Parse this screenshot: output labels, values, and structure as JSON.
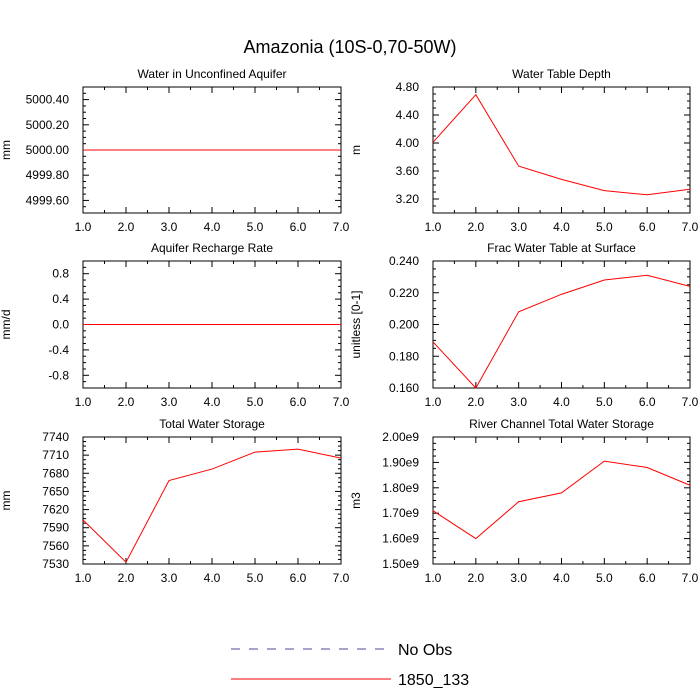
{
  "title": "Amazonia (10S-0,70-50W)",
  "colors": {
    "model_line": "#ff0000",
    "obs_line": "#4a4a9a",
    "axis": "#000000"
  },
  "legend": {
    "placement": "bottom-center",
    "entries": [
      {
        "label": "No Obs",
        "style": "dashed",
        "color": "#4a4a9a"
      },
      {
        "label": "1850_133",
        "style": "solid",
        "color": "#ff0000"
      }
    ]
  },
  "chart_data": [
    {
      "type": "line",
      "title": "Water in Unconfined Aquifer",
      "ylabel": "mm",
      "xlim": [
        1,
        7
      ],
      "ylim": [
        4999.5,
        5000.5
      ],
      "xticks": [
        "1.0",
        "2.0",
        "3.0",
        "4.0",
        "5.0",
        "6.0",
        "7.0"
      ],
      "yticks": [
        {
          "v": 4999.6,
          "label": "4999.60"
        },
        {
          "v": 4999.8,
          "label": "4999.80"
        },
        {
          "v": 5000.0,
          "label": "5000.00"
        },
        {
          "v": 5000.2,
          "label": "5000.20"
        },
        {
          "v": 5000.4,
          "label": "5000.40"
        }
      ],
      "x": [
        1,
        2,
        3,
        4,
        5,
        6,
        7
      ],
      "series": [
        {
          "name": "1850_133",
          "values": [
            5000,
            5000,
            5000,
            5000,
            5000,
            5000,
            5000
          ]
        }
      ]
    },
    {
      "type": "line",
      "title": "Water Table Depth",
      "ylabel": "m",
      "xlim": [
        1,
        7
      ],
      "ylim": [
        3.0,
        4.8
      ],
      "xticks": [
        "1.0",
        "2.0",
        "3.0",
        "4.0",
        "5.0",
        "6.0",
        "7.0"
      ],
      "yticks": [
        {
          "v": 3.2,
          "label": "3.20"
        },
        {
          "v": 3.6,
          "label": "3.60"
        },
        {
          "v": 4.0,
          "label": "4.00"
        },
        {
          "v": 4.4,
          "label": "4.40"
        },
        {
          "v": 4.8,
          "label": "4.80"
        }
      ],
      "x": [
        1,
        2,
        3,
        4,
        5,
        6,
        7
      ],
      "series": [
        {
          "name": "1850_133",
          "values": [
            4.01,
            4.69,
            3.67,
            3.48,
            3.32,
            3.26,
            3.34
          ]
        }
      ]
    },
    {
      "type": "line",
      "title": "Aquifer Recharge Rate",
      "ylabel": "mm/d",
      "xlim": [
        1,
        7
      ],
      "ylim": [
        -1.0,
        1.0
      ],
      "xticks": [
        "1.0",
        "2.0",
        "3.0",
        "4.0",
        "5.0",
        "6.0",
        "7.0"
      ],
      "yticks": [
        {
          "v": -0.8,
          "label": "-0.8"
        },
        {
          "v": -0.4,
          "label": "-0.4"
        },
        {
          "v": 0.0,
          "label": "0.0"
        },
        {
          "v": 0.4,
          "label": "0.4"
        },
        {
          "v": 0.8,
          "label": "0.8"
        }
      ],
      "x": [
        1,
        2,
        3,
        4,
        5,
        6,
        7
      ],
      "series": [
        {
          "name": "1850_133",
          "values": [
            0,
            0,
            0,
            0,
            0,
            0,
            0
          ]
        }
      ]
    },
    {
      "type": "line",
      "title": "Frac Water Table at Surface",
      "ylabel": "unitless [0-1]",
      "xlim": [
        1,
        7
      ],
      "ylim": [
        0.16,
        0.24
      ],
      "xticks": [
        "1.0",
        "2.0",
        "3.0",
        "4.0",
        "5.0",
        "6.0",
        "7.0"
      ],
      "yticks": [
        {
          "v": 0.16,
          "label": "0.160"
        },
        {
          "v": 0.18,
          "label": "0.180"
        },
        {
          "v": 0.2,
          "label": "0.200"
        },
        {
          "v": 0.22,
          "label": "0.220"
        },
        {
          "v": 0.24,
          "label": "0.240"
        }
      ],
      "x": [
        1,
        2,
        3,
        4,
        5,
        6,
        7
      ],
      "series": [
        {
          "name": "1850_133",
          "values": [
            0.189,
            0.16,
            0.208,
            0.219,
            0.228,
            0.231,
            0.224
          ]
        }
      ]
    },
    {
      "type": "line",
      "title": "Total Water Storage",
      "ylabel": "mm",
      "xlim": [
        1,
        7
      ],
      "ylim": [
        7530,
        7740
      ],
      "xticks": [
        "1.0",
        "2.0",
        "3.0",
        "4.0",
        "5.0",
        "6.0",
        "7.0"
      ],
      "yticks": [
        {
          "v": 7530,
          "label": "7530"
        },
        {
          "v": 7560,
          "label": "7560"
        },
        {
          "v": 7590,
          "label": "7590"
        },
        {
          "v": 7620,
          "label": "7620"
        },
        {
          "v": 7650,
          "label": "7650"
        },
        {
          "v": 7680,
          "label": "7680"
        },
        {
          "v": 7710,
          "label": "7710"
        },
        {
          "v": 7740,
          "label": "7740"
        }
      ],
      "x": [
        1,
        2,
        3,
        4,
        5,
        6,
        7
      ],
      "series": [
        {
          "name": "1850_133",
          "values": [
            7603,
            7533,
            7668,
            7687,
            7715,
            7720,
            7705
          ]
        }
      ]
    },
    {
      "type": "line",
      "title": "River Channel Total Water Storage",
      "ylabel": "m3",
      "xlim": [
        1,
        7
      ],
      "ylim": [
        1500000000.0,
        2000000000.0
      ],
      "xticks": [
        "1.0",
        "2.0",
        "3.0",
        "4.0",
        "5.0",
        "6.0",
        "7.0"
      ],
      "yticks": [
        {
          "v": 1500000000.0,
          "label": "1.50e9"
        },
        {
          "v": 1600000000.0,
          "label": "1.60e9"
        },
        {
          "v": 1700000000.0,
          "label": "1.70e9"
        },
        {
          "v": 1800000000.0,
          "label": "1.80e9"
        },
        {
          "v": 1900000000.0,
          "label": "1.90e9"
        },
        {
          "v": 2000000000.0,
          "label": "2.00e9"
        }
      ],
      "x": [
        1,
        2,
        3,
        4,
        5,
        6,
        7
      ],
      "series": [
        {
          "name": "1850_133",
          "values": [
            1710000000.0,
            1600000000.0,
            1745000000.0,
            1780000000.0,
            1905000000.0,
            1880000000.0,
            1810000000.0
          ]
        }
      ]
    }
  ]
}
